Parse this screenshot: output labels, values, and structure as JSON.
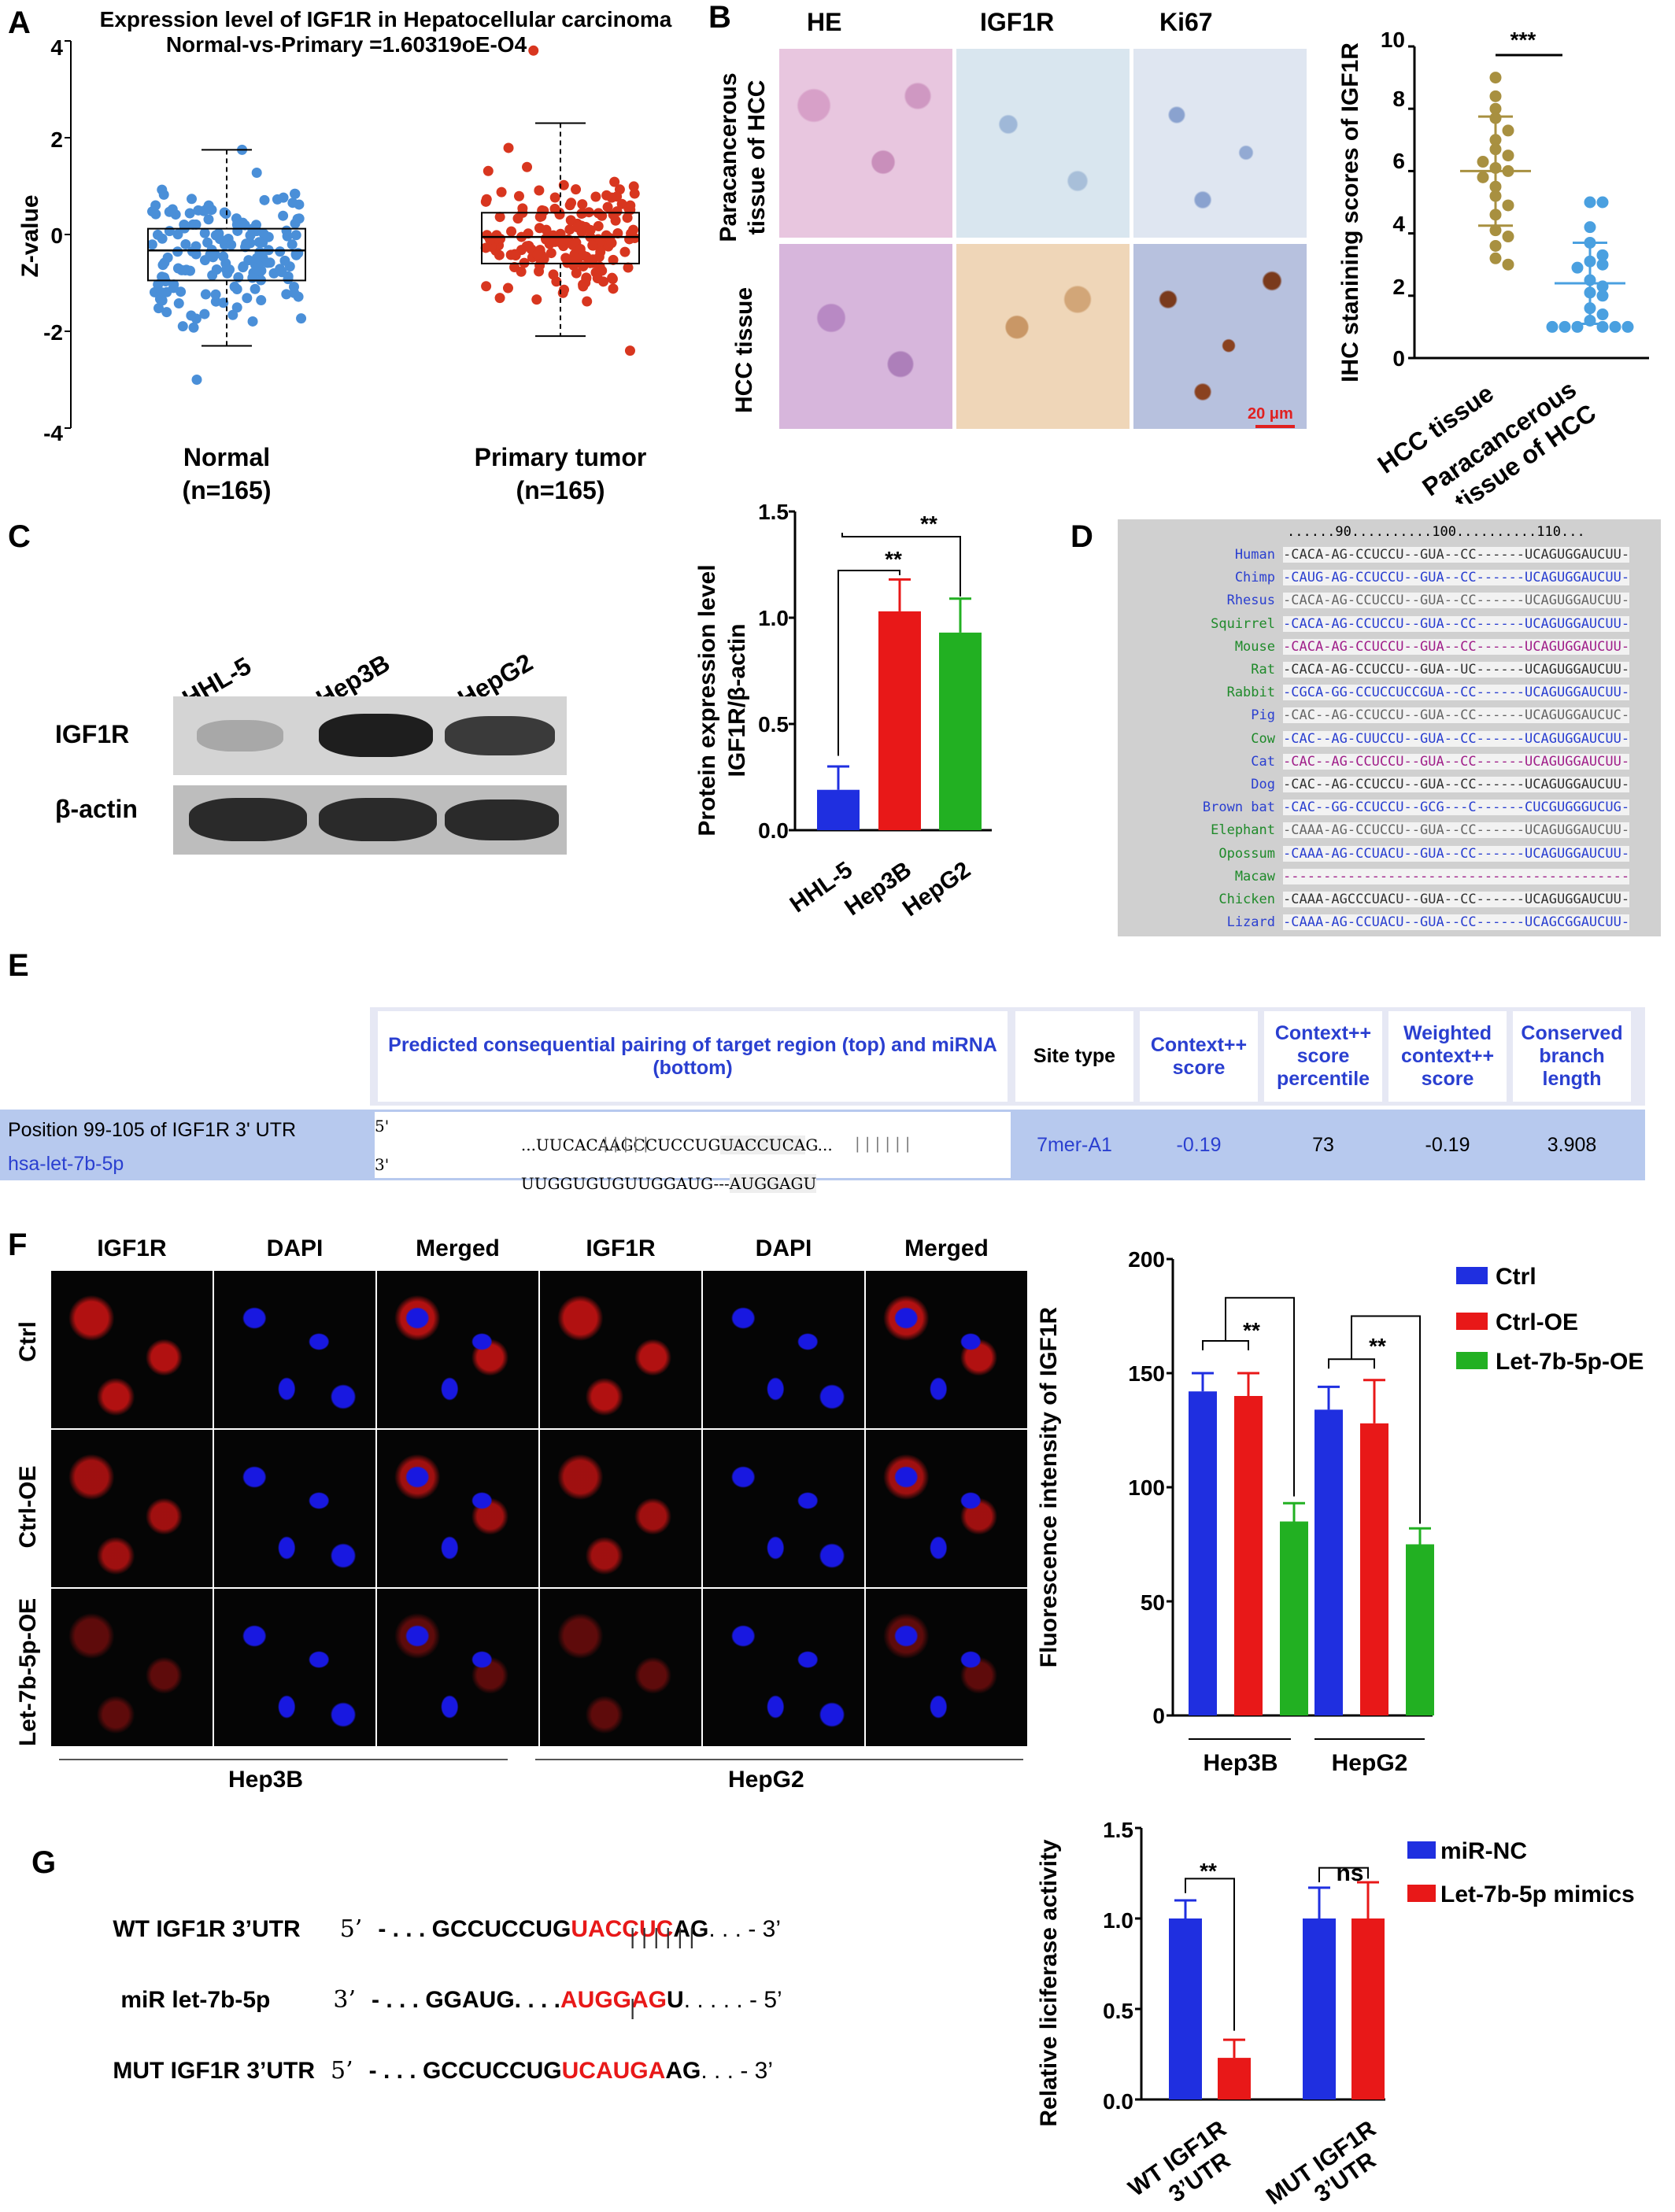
{
  "panels": {
    "A": "A",
    "B": "B",
    "C": "C",
    "D": "D",
    "E": "E",
    "F": "F",
    "G": "G"
  },
  "panelA": {
    "title": "Expression level of IGF1R in Hepatocellular carcinoma",
    "subtitle": "Normal-vs-Primary =1.60319oE-O4",
    "ylabel": "Z-value",
    "yticks": [
      "4",
      "2",
      "0",
      "-2",
      "-4"
    ],
    "groups": [
      {
        "name": "Normal",
        "n": "(n=165)",
        "color": "#4a8fd8",
        "q1": -0.95,
        "median": -0.33,
        "q3": 0.12,
        "min": -2.3,
        "max": 1.75
      },
      {
        "name": "Primary tumor",
        "n": "(n=165)",
        "color": "#d8361f",
        "q1": -0.6,
        "median": -0.05,
        "q3": 0.45,
        "min": -2.1,
        "max": 2.3
      }
    ]
  },
  "panelB": {
    "cols": [
      "HE",
      "IGF1R",
      "Ki67"
    ],
    "rows": [
      "Paracancerous tissue of HCC",
      "HCC tissue"
    ],
    "row1a": "Paracancerous",
    "row1b": "tissue of HCC",
    "row2": "HCC tissue",
    "scale": "20 μm",
    "chart": {
      "ylabel": "IHC stanining scores of IGF1R",
      "yticks": [
        "10",
        "8",
        "6",
        "4",
        "2",
        "0"
      ],
      "cat1": "HCC tissue",
      "cat2a": "Paracancerous",
      "cat2b": "tissue of HCC",
      "sig": "***"
    }
  },
  "panelC": {
    "lanes": [
      "HHL-5",
      "Hep3B",
      "HepG2"
    ],
    "bands": [
      "IGF1R",
      "β-actin"
    ],
    "chart": {
      "ylabel1": "Protein expression level",
      "ylabel2": "IGF1R/β-actin",
      "yticks": [
        "1.5",
        "1.0",
        "0.5",
        "0.0"
      ],
      "sig1": "**",
      "sig2": "**"
    }
  },
  "panelD": {
    "ruler": "......90..........100..........110...",
    "species": [
      {
        "name": "Human",
        "color": "#2a3fd0",
        "seq": "-CACA-AG-CCUCCU--GUA--CC------UCAGUGGAUCUU-",
        "seqcolor": "#333"
      },
      {
        "name": "Chimp",
        "color": "#2a3fd0",
        "seq": "-CAUG-AG-CCUCCU--GUA--CC------UCAGUGGAUCUU-",
        "seqcolor": "#2a3fd0"
      },
      {
        "name": "Rhesus",
        "color": "#2a3fd0",
        "seq": "-CACA-AG-CCUCCU--GUA--CC------UCAGUGGAUCUU-",
        "seqcolor": "#666"
      },
      {
        "name": "Squirrel",
        "color": "#1f8a2a",
        "seq": "-CACA-AG-CCUCCU--GUA--CC------UCAGUGGAUCUU-",
        "seqcolor": "#2a3fd0"
      },
      {
        "name": "Mouse",
        "color": "#1f8a2a",
        "seq": "-CACA-AG-CCUCCU--GUA--CC------UCAGUGGAUCUU-",
        "seqcolor": "#a0208a"
      },
      {
        "name": "Rat",
        "color": "#1f8a2a",
        "seq": "-CACA-AG-CCUCCU--GUA--UC------UCAGUGGAUCUU-",
        "seqcolor": "#333"
      },
      {
        "name": "Rabbit",
        "color": "#1f8a2a",
        "seq": "-CGCA-GG-CCUCCUCCGUA--CC------UCAGUGGAUCUU-",
        "seqcolor": "#2a3fd0"
      },
      {
        "name": "Pig",
        "color": "#2a3fd0",
        "seq": "-CAC--AG-CCUCCU--GUA--CC------UCAGUGGAUCUC-",
        "seqcolor": "#666"
      },
      {
        "name": "Cow",
        "color": "#1f8a2a",
        "seq": "-CAC--AG-CUUCCU--GUA--CC------UCAGUGGAUCUU-",
        "seqcolor": "#2a3fd0"
      },
      {
        "name": "Cat",
        "color": "#2a3fd0",
        "seq": "-CAC--AG-CCUCCU--GUA--CC------UCAGUGGAUCUU-",
        "seqcolor": "#a0208a"
      },
      {
        "name": "Dog",
        "color": "#2a3fd0",
        "seq": "-CAC--AG-CCUCCU--GUA--CC------UCAGUGGAUCUU-",
        "seqcolor": "#333"
      },
      {
        "name": "Brown bat",
        "color": "#2a3fd0",
        "seq": "-CAC--GG-CCUCCU--GCG---C------CUCGUGGGUCUG-",
        "seqcolor": "#2a3fd0"
      },
      {
        "name": "Elephant",
        "color": "#1f8a2a",
        "seq": "-CAAA-AG-CCUCCU--GUA--CC------UCAGUGGAUCUU-",
        "seqcolor": "#666"
      },
      {
        "name": "Opossum",
        "color": "#1f8a2a",
        "seq": "-CAAA-AG-CCUACU--GUA--CC------UCAGUGGAUCUU-",
        "seqcolor": "#2a3fd0"
      },
      {
        "name": "Macaw",
        "color": "#1f8a2a",
        "seq": "-------------------------------------------",
        "seqcolor": "#a0208a"
      },
      {
        "name": "Chicken",
        "color": "#1f8a2a",
        "seq": "-CAAA-AGCCCUACU--GUA--CC------UCAGUGGAUCUU-",
        "seqcolor": "#333"
      },
      {
        "name": "Lizard",
        "color": "#2a3fd0",
        "seq": "-CAAA-AG-CCUACU--GUA--CC------UCAGCGGAUCUU-",
        "seqcolor": "#2a3fd0"
      }
    ]
  },
  "panelE": {
    "headers": {
      "pairing": "Predicted consequential pairing of target region (top) and miRNA (bottom)",
      "site_type": "Site type",
      "context": "Context++ score",
      "percentile": "Context++ score percentile",
      "weighted": "Weighted context++ score",
      "branch": "Conserved branch length"
    },
    "row": {
      "position": "Position 99-105 of IGF1R 3' UTR",
      "mirna": "hsa-let-7b-5p",
      "p5": "5'",
      "p3": "3'",
      "top_prefix": "...UUCACAAGCCUCCUG",
      "top_hl": "UACCUCA",
      "top_suffix": "G...",
      "pipes_left": "|||||",
      "pipes_right": "||||||",
      "bottom_prefix": "UUGGUGUGUUGGAUG---",
      "bottom_hl": "AUGGAGU",
      "site_type": "7mer-A1",
      "context": "-0.19",
      "percentile": "73",
      "weighted": "-0.19",
      "branch": "3.908"
    }
  },
  "panelF": {
    "cols": [
      "IGF1R",
      "DAPI",
      "Merged",
      "IGF1R",
      "DAPI",
      "Merged"
    ],
    "rows": [
      "Ctrl",
      "Ctrl-OE",
      "Let-7b-5p-OE"
    ],
    "cells": [
      "Hep3B",
      "HepG2"
    ],
    "chart": {
      "ylabel": "Fluorescence intensity of IGF1R",
      "yticks": [
        "200",
        "150",
        "100",
        "50",
        "0"
      ],
      "legend": [
        "Ctrl",
        "Ctrl-OE",
        "Let-7b-5p-OE"
      ],
      "sig1": "**",
      "sig2": "**"
    }
  },
  "panelG": {
    "wt_label": "WT IGF1R 3’UTR",
    "wt_p": "5’",
    "wt_pre": "- . . . GCCUCCUG",
    "wt_hl": "UACCUC",
    "wt_suf": "AG",
    "wt_end": ". . . - 3’",
    "pipes": "| | | | | |",
    "mi_label": "miR let-7b-5p",
    "mi_p": "3’",
    "mi_pre": "- . . . GGAUG. . . .",
    "mi_hl": "AUGGAG",
    "mi_suf": "U",
    "mi_end": ". . . . . - 5’",
    "pipe1": "|",
    "mut_label": "MUT IGF1R 3’UTR",
    "mut_p": "5’",
    "mut_pre": "- . . . GCCUCCUG",
    "mut_hl": "UCAUGA",
    "mut_suf": "AG",
    "mut_end": ". . . - 3’",
    "chart": {
      "ylabel": "Relative liciferase activity",
      "yticks": [
        "1.5",
        "1.0",
        "0.5",
        "0.0"
      ],
      "legend": [
        "miR-NC",
        "Let-7b-5p mimics"
      ],
      "cat1a": "WT IGF1R",
      "cat1b": "3’UTR",
      "cat2a": "MUT IGF1R",
      "cat2b": "3’UTR",
      "sig1": "**",
      "sig2": "ns"
    }
  },
  "chart_data": [
    {
      "type": "scatter",
      "title": "Expression level of IGF1R in Hepatocellular carcinoma",
      "subtitle": "Normal-vs-Primary =1.60319oE-O4",
      "ylabel": "Z-value",
      "ylim": [
        -4,
        4
      ],
      "categories": [
        "Normal (n=165)",
        "Primary tumor (n=165)"
      ],
      "boxes": [
        {
          "name": "Normal",
          "min": -2.3,
          "q1": -0.95,
          "median": -0.33,
          "q3": 0.12,
          "max": 1.75
        },
        {
          "name": "Primary tumor",
          "min": -2.1,
          "q1": -0.6,
          "median": -0.05,
          "q3": 0.45,
          "max": 2.3
        }
      ]
    },
    {
      "type": "scatter",
      "ylabel": "IHC stanining scores of IGF1R",
      "ylim": [
        0,
        10
      ],
      "categories": [
        "HCC tissue",
        "Paracancerous tissue of HCC"
      ],
      "series": [
        {
          "values": [
            9,
            8.4,
            8,
            7.7,
            7.3,
            7,
            6.7,
            6.5,
            6.3,
            6.1,
            6,
            5.8,
            5.5,
            5.2,
            4.9,
            4.6,
            4.1,
            3.9,
            3.6,
            3.2,
            3
          ],
          "mean": 6.0,
          "sd": 1.75,
          "color": "#a89040"
        },
        {
          "values": [
            5,
            5,
            4.2,
            3.7,
            3.3,
            3.1,
            3,
            2.9,
            2.5,
            2.3,
            2.1,
            2,
            1.6,
            1.4,
            1.2,
            1,
            1,
            1,
            1,
            1,
            1
          ],
          "mean": 2.4,
          "sd": 1.3,
          "color": "#4aa0e0"
        }
      ]
    },
    {
      "type": "bar",
      "ylabel": "Protein expression level IGF1R/β-actin",
      "ylim": [
        0,
        1.5
      ],
      "categories": [
        "HHL-5",
        "Hep3B",
        "HepG2"
      ],
      "values": [
        0.19,
        1.03,
        0.93
      ],
      "errors": [
        0.11,
        0.15,
        0.16
      ],
      "colors": [
        "#1f2fe0",
        "#e81818",
        "#22b022"
      ]
    },
    {
      "type": "bar",
      "ylabel": "Fluorescence intensity of IGF1R",
      "ylim": [
        0,
        200
      ],
      "categories": [
        "Hep3B",
        "HepG2"
      ],
      "series": [
        {
          "name": "Ctrl",
          "values": [
            142,
            134
          ],
          "errors": [
            8,
            10
          ],
          "color": "#1f2fe0"
        },
        {
          "name": "Ctrl-OE",
          "values": [
            140,
            128
          ],
          "errors": [
            10,
            19
          ],
          "color": "#e81818"
        },
        {
          "name": "Let-7b-5p-OE",
          "values": [
            85,
            75
          ],
          "errors": [
            8,
            7
          ],
          "color": "#22b022"
        }
      ]
    },
    {
      "type": "bar",
      "ylabel": "Relative liciferase activity",
      "ylim": [
        0,
        1.5
      ],
      "categories": [
        "WT IGF1R 3’UTR",
        "MUT IGF1R 3’UTR"
      ],
      "series": [
        {
          "name": "miR-NC",
          "values": [
            1.0,
            1.0
          ],
          "errors": [
            0.1,
            0.17
          ],
          "color": "#1f2fe0"
        },
        {
          "name": "Let-7b-5p mimics",
          "values": [
            0.23,
            1.0
          ],
          "errors": [
            0.1,
            0.2
          ],
          "color": "#e81818"
        }
      ]
    }
  ]
}
